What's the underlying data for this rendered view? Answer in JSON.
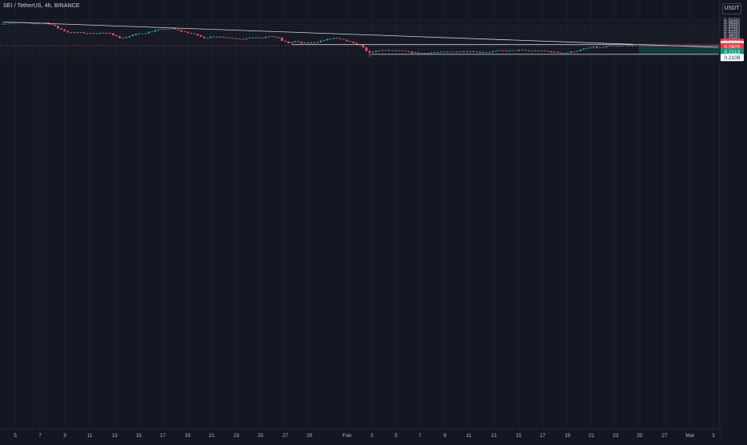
{
  "header": {
    "symbol_title": "SEI / TetherUS, 4h, BINANCE",
    "currency_button": "USDT"
  },
  "chart_data": {
    "type": "candlestick",
    "ylim": [
      0.17,
      0.512
    ],
    "y_ticks": [
      "0.5000",
      "0.4800",
      "0.4600",
      "0.4400",
      "0.4200",
      "0.4000",
      "0.3800",
      "0.3600",
      "0.3400",
      "0.3200",
      "0.3000",
      "0.2800",
      "0.2600",
      "0.2400",
      "0.2200",
      "0.2000",
      "0.1800"
    ],
    "x_ticks": [
      "5",
      "7",
      "9",
      "11",
      "13",
      "15",
      "17",
      "19",
      "21",
      "23",
      "25",
      "27",
      "29",
      "Feb",
      "3",
      "5",
      "7",
      "9",
      "11",
      "13",
      "15",
      "17",
      "19",
      "21",
      "23",
      "25",
      "27",
      "Mar",
      "3"
    ],
    "candle_count": 196,
    "trendlines": [
      {
        "type": "downtrend",
        "from": [
          0,
          0.481
        ],
        "to": [
          220.5,
          0.269
        ]
      },
      {
        "type": "resistance",
        "from": [
          89,
          0.2916
        ],
        "to": [
          194,
          0.2916
        ]
      },
      {
        "type": "support",
        "from": [
          113.5,
          0.2109
        ],
        "to": [
          220.5,
          0.2109
        ]
      }
    ],
    "position": {
      "entry": 0.2823,
      "stop": 0.2982,
      "target": 0.2113
    },
    "price_labels": [
      {
        "value": "0.2982",
        "price": 0.2982,
        "kind": "stop"
      },
      {
        "value": "0.2916",
        "price": 0.2916,
        "kind": "level"
      },
      {
        "value": "0.2823",
        "price": 0.2823,
        "kind": "entry"
      },
      {
        "value": "0.2820",
        "price": 0.282,
        "kind": "last",
        "countdown": "02:53:15"
      },
      {
        "value": "0.2113",
        "price": 0.2113,
        "kind": "target"
      },
      {
        "value": "0.2109",
        "price": 0.2109,
        "kind": "level"
      }
    ],
    "colors": {
      "up": "#26a69a",
      "down": "#ef5350",
      "background": "#131722",
      "grid": "#1e222d",
      "axis_text": "#b2b5be",
      "line": "#d1d4dc"
    }
  }
}
